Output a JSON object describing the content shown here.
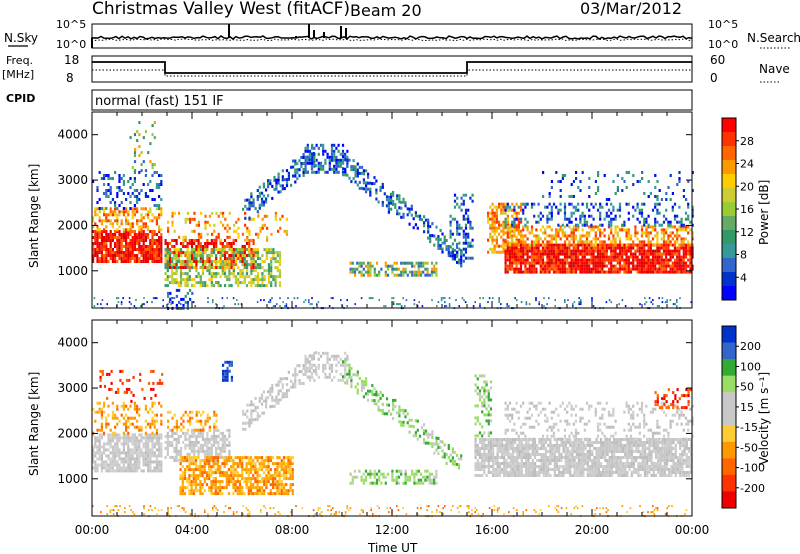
{
  "header": {
    "title": "Christmas Valley West (fitACF)",
    "beam": "Beam 20",
    "date": "03/Mar/2012"
  },
  "strips": {
    "nsky_label": "N.Sky",
    "nsky_ticks": [
      "10^5",
      "10^0"
    ],
    "nsearch_label": "N.Search",
    "nsearch_ticks": [
      "10^5",
      "10^0"
    ],
    "freq_label": [
      "Freq.",
      "[MHz]"
    ],
    "freq_ticks": [
      "18",
      "8"
    ],
    "nave_label": "Nave",
    "nave_ticks": [
      "60",
      "0"
    ],
    "cpid_label": "CPID",
    "cpid_value": "normal (fast) 151 IF"
  },
  "chart_data": [
    {
      "type": "heatmap",
      "name": "power",
      "ylabel": "Slant Range [km]",
      "yticks": [
        "4000",
        "3000",
        "2000",
        "1000"
      ],
      "ylim": [
        180,
        4500
      ],
      "colorbar_label": "Power [dB]",
      "colorbar_ticks": [
        "28",
        "24",
        "20",
        "16",
        "12",
        "8",
        "4"
      ],
      "colorbar_colors": [
        "#ff0000",
        "#ff3300",
        "#ff6600",
        "#ff9900",
        "#ffcc00",
        "#cccc33",
        "#99cc33",
        "#66aa66",
        "#339966",
        "#339999",
        "#3366cc",
        "#0033cc",
        "#0000ff"
      ]
    },
    {
      "type": "heatmap",
      "name": "velocity",
      "ylabel": "Slant Range [km]",
      "yticks": [
        "4000",
        "3000",
        "2000",
        "1000"
      ],
      "ylim": [
        180,
        4500
      ],
      "colorbar_label": "Velocity [m s⁻¹]",
      "colorbar_ticks": [
        "200",
        "100",
        "50",
        "15",
        "-15",
        "-50",
        "-100",
        "-200"
      ],
      "colorbar_colors": [
        "#0033cc",
        "#3366cc",
        "#33aa33",
        "#99dd66",
        "#c8c8c8",
        "#c8c8c8",
        "#ffcc33",
        "#ff9900",
        "#ff6600",
        "#ff3300",
        "#ee0000"
      ]
    }
  ],
  "xaxis": {
    "ticks": [
      "00:00",
      "04:00",
      "08:00",
      "12:00",
      "16:00",
      "20:00",
      "00:00"
    ],
    "label": "Time UT"
  }
}
